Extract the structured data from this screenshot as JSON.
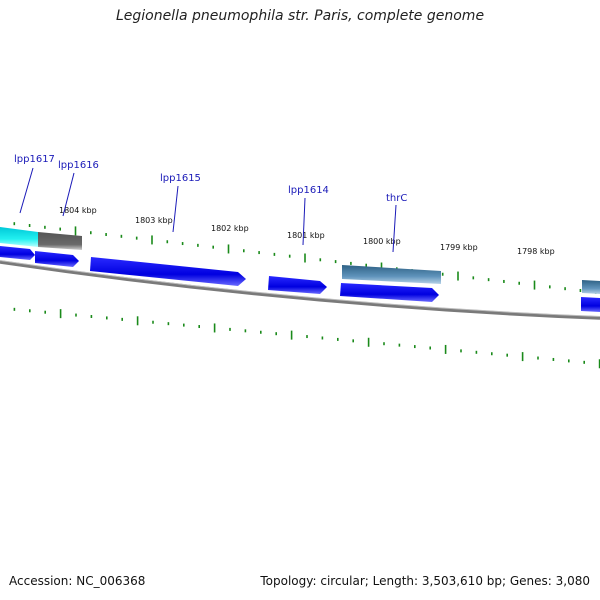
{
  "title": "Legionella pneumophila str. Paris, complete genome",
  "footer": {
    "accession": "Accession: NC_006368",
    "summary": "Topology: circular; Length: 3,503,610 bp; Genes: 3,080"
  },
  "ruler": {
    "labels": [
      "1804 kbp",
      "1803 kbp",
      "1802 kbp",
      "1801 kbp",
      "1800 kbp",
      "1799 kbp",
      "1798 kbp"
    ]
  },
  "gene_labels": [
    "lpp1617",
    "lpp1616",
    "lpp1615",
    "lpp1614",
    "thrC"
  ],
  "colors": {
    "cds": "#0000ee",
    "gene_gray": "#666666",
    "gene_cyan": "#00e5e5",
    "gene_steel": "#4a7fa8",
    "backbone": "#7a7a7a",
    "ticks": "#1a8a1a",
    "label_link": "#1a1ab8"
  }
}
